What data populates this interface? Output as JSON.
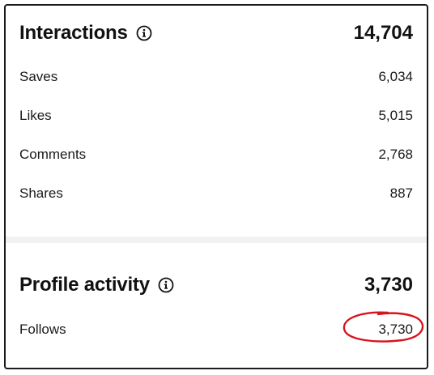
{
  "interactions": {
    "title": "Interactions",
    "total": "14,704",
    "info_icon": "info-circle-icon",
    "rows": [
      {
        "label": "Saves",
        "value": "6,034"
      },
      {
        "label": "Likes",
        "value": "5,015"
      },
      {
        "label": "Comments",
        "value": "2,768"
      },
      {
        "label": "Shares",
        "value": "887"
      }
    ]
  },
  "profile_activity": {
    "title": "Profile activity",
    "total": "3,730",
    "info_icon": "info-circle-icon",
    "rows": [
      {
        "label": "Follows",
        "value": "3,730"
      }
    ]
  },
  "colors": {
    "text": "#111111",
    "border": "#1a1a1a",
    "divider": "#f2f2f2",
    "annotation": "#d8141c"
  }
}
